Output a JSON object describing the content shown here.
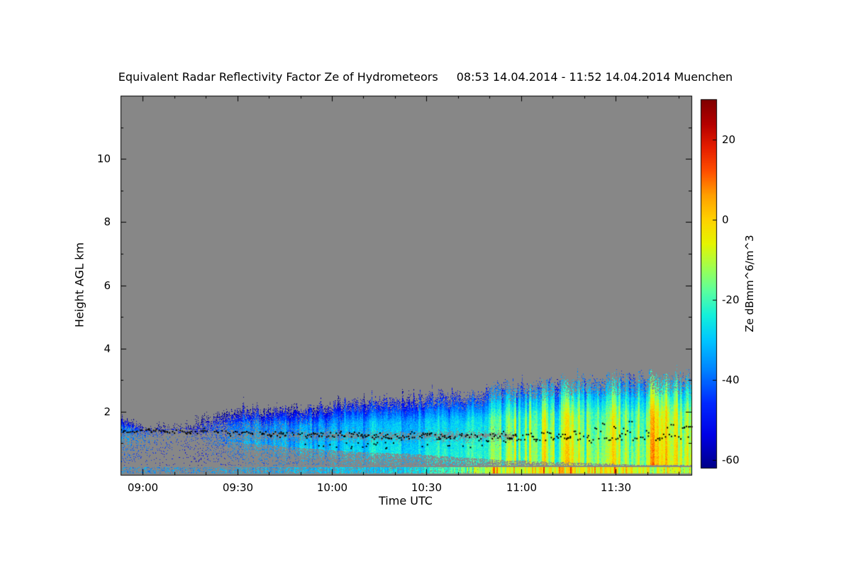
{
  "chart_data": {
    "type": "heatmap",
    "title": "Equivalent Radar Reflectivity Factor Ze of Hydrometeors",
    "subtitle": "08:53 14.04.2014 - 11:52 14.04.2014 Muenchen",
    "xlabel": "Time UTC",
    "ylabel": "Height AGL km",
    "duration_minutes": 181,
    "ylim": [
      0,
      12
    ],
    "y_ticks": [
      2,
      4,
      6,
      8,
      10
    ],
    "x_ticks": [
      {
        "label": "09:00",
        "minutes": 7
      },
      {
        "label": "09:30",
        "minutes": 37
      },
      {
        "label": "10:00",
        "minutes": 67
      },
      {
        "label": "10:30",
        "minutes": 97
      },
      {
        "label": "11:00",
        "minutes": 127
      },
      {
        "label": "11:30",
        "minutes": 157
      }
    ],
    "x_minor_step_minutes": 10,
    "background_color": "#878787",
    "colorbar": {
      "label": "Ze dBmm^6/m^3",
      "ticks": [
        20,
        0,
        -20,
        -40,
        -60
      ],
      "vmin": -62,
      "vmax": 30
    },
    "colormap": [
      [
        -62,
        "#00008A"
      ],
      [
        -54,
        "#0000E6"
      ],
      [
        -46,
        "#0028FF"
      ],
      [
        -38,
        "#0080FF"
      ],
      [
        -30,
        "#00C8FF"
      ],
      [
        -24,
        "#14F0DC"
      ],
      [
        -18,
        "#5AFFA0"
      ],
      [
        -12,
        "#A0FF50"
      ],
      [
        -6,
        "#E6F500"
      ],
      [
        0,
        "#FFD200"
      ],
      [
        6,
        "#FFA000"
      ],
      [
        12,
        "#FF5000"
      ],
      [
        18,
        "#E61E00"
      ],
      [
        24,
        "#B40000"
      ],
      [
        30,
        "#800000"
      ]
    ],
    "cloud_profile": [
      {
        "t": 0,
        "top": 1.75,
        "base": 1.1,
        "dbz": -37,
        "cov": 0.85
      },
      {
        "t": 8,
        "top": 1.6,
        "base": 1.15,
        "dbz": -43,
        "cov": 0.5
      },
      {
        "t": 18,
        "top": 1.5,
        "base": 1.2,
        "dbz": -50,
        "cov": 0.18
      },
      {
        "t": 28,
        "top": 1.9,
        "base": 1.1,
        "dbz": -45,
        "cov": 0.5
      },
      {
        "t": 38,
        "top": 2.05,
        "base": 1.0,
        "dbz": -42,
        "cov": 0.75
      },
      {
        "t": 50,
        "top": 2.1,
        "base": 0.9,
        "dbz": -38,
        "cov": 0.9
      },
      {
        "t": 62,
        "top": 2.25,
        "base": 0.8,
        "dbz": -36,
        "cov": 0.95
      },
      {
        "t": 77,
        "top": 2.4,
        "base": 0.7,
        "dbz": -33,
        "cov": 1
      },
      {
        "t": 92,
        "top": 2.5,
        "base": 0.65,
        "dbz": -31,
        "cov": 1
      },
      {
        "t": 107,
        "top": 2.6,
        "base": 0.55,
        "dbz": -27,
        "cov": 1
      },
      {
        "t": 122,
        "top": 2.85,
        "base": 0.45,
        "dbz": -22,
        "cov": 1
      },
      {
        "t": 137,
        "top": 3.0,
        "base": 0.4,
        "dbz": -17,
        "cov": 1
      },
      {
        "t": 152,
        "top": 3.1,
        "base": 0.35,
        "dbz": -14,
        "cov": 1
      },
      {
        "t": 167,
        "top": 3.2,
        "base": 0.3,
        "dbz": -12,
        "cov": 1
      },
      {
        "t": 181,
        "top": 3.25,
        "base": 0.3,
        "dbz": -12,
        "cov": 1
      }
    ],
    "surface_band": [
      {
        "t": 0,
        "dbz": -36,
        "cov": 0.3
      },
      {
        "t": 25,
        "dbz": -36,
        "cov": 0.25
      },
      {
        "t": 45,
        "dbz": -33,
        "cov": 0.45
      },
      {
        "t": 65,
        "dbz": -31,
        "cov": 0.65
      },
      {
        "t": 90,
        "dbz": -28,
        "cov": 0.75
      },
      {
        "t": 108,
        "dbz": -18,
        "cov": 0.9
      },
      {
        "t": 120,
        "dbz": -8,
        "cov": 1
      },
      {
        "t": 135,
        "dbz": -4,
        "cov": 1
      },
      {
        "t": 150,
        "dbz": -4,
        "cov": 1
      },
      {
        "t": 165,
        "dbz": -7,
        "cov": 1
      },
      {
        "t": 181,
        "dbz": -8,
        "cov": 0.95
      }
    ],
    "melting_layer": {
      "count": 300,
      "secondary_count": 45,
      "points": [
        {
          "t": 0,
          "h": 1.42
        },
        {
          "t": 30,
          "h": 1.37
        },
        {
          "t": 60,
          "h": 1.3
        },
        {
          "t": 90,
          "h": 1.25
        },
        {
          "t": 120,
          "h": 1.21
        },
        {
          "t": 150,
          "h": 1.26
        },
        {
          "t": 181,
          "h": 1.34
        }
      ]
    },
    "clutter_band": {
      "t0": 70,
      "t1": 112,
      "h0": 0.8,
      "h1": 1.0,
      "color": "#9C9C9C"
    }
  }
}
